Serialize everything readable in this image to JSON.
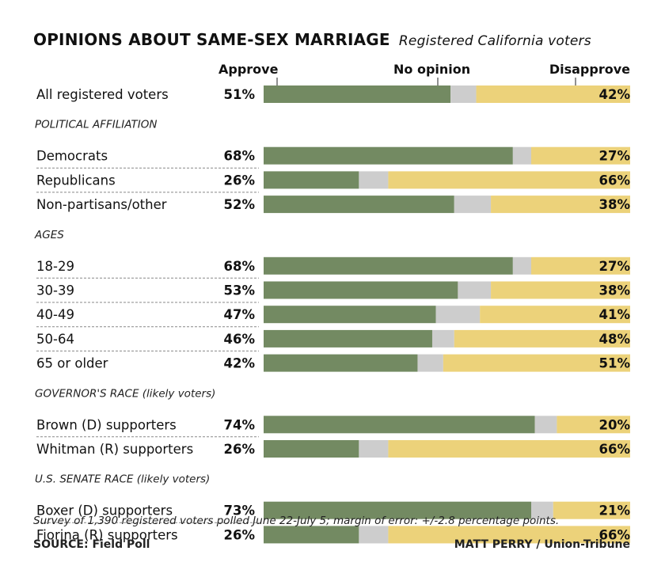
{
  "chart_data": {
    "type": "bar",
    "stacked": true,
    "title": "OPINIONS ABOUT SAME-SEX MARRIAGE",
    "subtitle": "Registered California voters",
    "series_labels": {
      "approve": "Approve",
      "no_opinion": "No opinion",
      "disapprove": "Disapprove"
    },
    "colors": {
      "approve": "#738a62",
      "no_opinion": "#cdcdcd",
      "disapprove": "#ecd27a"
    },
    "groups": [
      {
        "heading": "",
        "rows": [
          {
            "label": "All registered voters",
            "approve": 51,
            "disapprove": 42
          }
        ]
      },
      {
        "heading": "POLITICAL AFFILIATION",
        "rows": [
          {
            "label": "Democrats",
            "approve": 68,
            "disapprove": 27
          },
          {
            "label": "Republicans",
            "approve": 26,
            "disapprove": 66
          },
          {
            "label": "Non-partisans/other",
            "approve": 52,
            "disapprove": 38
          }
        ]
      },
      {
        "heading": "AGES",
        "rows": [
          {
            "label": "18-29",
            "approve": 68,
            "disapprove": 27
          },
          {
            "label": "30-39",
            "approve": 53,
            "disapprove": 38
          },
          {
            "label": "40-49",
            "approve": 47,
            "disapprove": 41
          },
          {
            "label": "50-64",
            "approve": 46,
            "disapprove": 48
          },
          {
            "label": "65 or older",
            "approve": 42,
            "disapprove": 51
          }
        ]
      },
      {
        "heading": "GOVERNOR'S RACE (likely voters)",
        "rows": [
          {
            "label": "Brown (D) supporters",
            "approve": 74,
            "disapprove": 20
          },
          {
            "label": "Whitman (R) supporters",
            "approve": 26,
            "disapprove": 66
          }
        ]
      },
      {
        "heading": "U.S. SENATE RACE (likely voters)",
        "rows": [
          {
            "label": "Boxer (D) supporters",
            "approve": 73,
            "disapprove": 21
          },
          {
            "label": "Fiorina (R) supporters",
            "approve": 26,
            "disapprove": 66
          }
        ]
      }
    ],
    "note": "Survey of 1,390 registered voters polled June 22-July 5; margin of error: +/-2.8 percentage points.",
    "source": "SOURCE: Field Poll",
    "credit": "MATT PERRY / Union-Tribune"
  }
}
